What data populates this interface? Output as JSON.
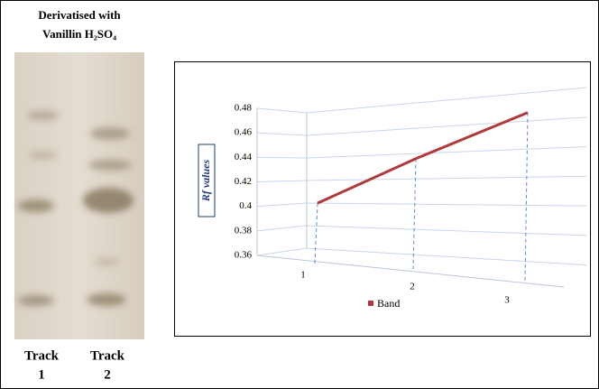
{
  "plate": {
    "title_lines": [
      "Derivatised with",
      "Vanillin H₂SO₄"
    ],
    "tracks": [
      {
        "name": "Track",
        "number": "1"
      },
      {
        "name": "Track",
        "number": "2"
      }
    ]
  },
  "chart_data": {
    "type": "line",
    "ylabel": "Rf values",
    "categories": [
      "1",
      "2",
      "3"
    ],
    "series": [
      {
        "name": "Band",
        "color": "#b03a3a",
        "values": [
          0.4,
          0.436,
          0.466
        ]
      }
    ],
    "ylim": [
      0.36,
      0.48
    ],
    "yticks": [
      0.36,
      0.38,
      0.4,
      0.42,
      0.44,
      0.46,
      0.48
    ],
    "grid": true
  }
}
